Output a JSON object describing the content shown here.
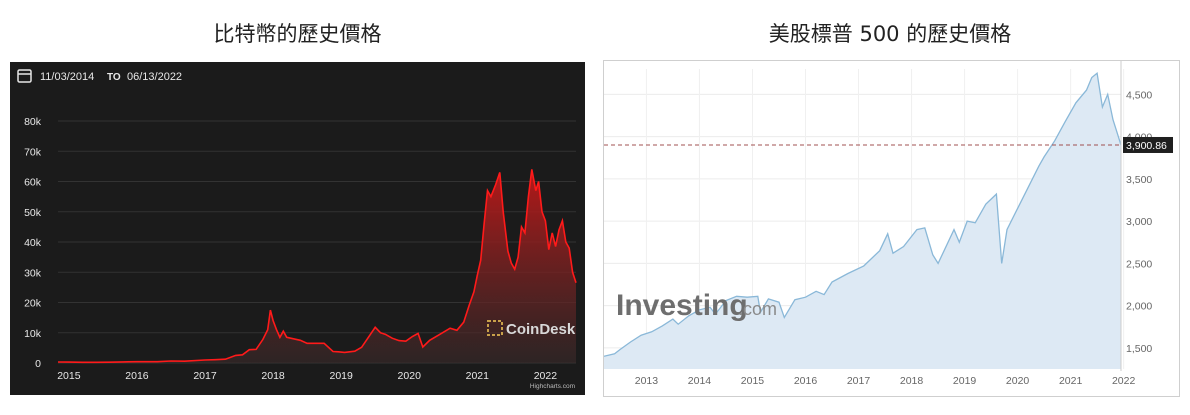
{
  "chart_data": [
    {
      "type": "area",
      "title": "比特幣的歷史價格",
      "date_range": {
        "from": "11/03/2014",
        "to_label": "TO",
        "to": "06/13/2022"
      },
      "x_ticks": [
        "2015",
        "2016",
        "2017",
        "2018",
        "2019",
        "2020",
        "2021",
        "2022"
      ],
      "y_ticks": [
        "0",
        "10k",
        "20k",
        "30k",
        "40k",
        "50k",
        "60k",
        "70k",
        "80k"
      ],
      "ylim": [
        0,
        80000
      ],
      "xlim": [
        2014.84,
        2022.45
      ],
      "watermark": "CoinDesk",
      "credit": "Highcharts.com",
      "colors": {
        "background": "#1b1b1b",
        "line": "#ff1a1a",
        "fill": "#c01818"
      },
      "series": [
        {
          "x": [
            2014.84,
            2015.0,
            2015.2,
            2015.4,
            2015.6,
            2015.8,
            2016.0,
            2016.3,
            2016.5,
            2016.7,
            2017.0,
            2017.15,
            2017.3,
            2017.45,
            2017.55,
            2017.65,
            2017.75,
            2017.85,
            2017.92,
            2017.96,
            2018.0,
            2018.05,
            2018.1,
            2018.15,
            2018.2,
            2018.3,
            2018.4,
            2018.5,
            2018.6,
            2018.75,
            2018.88,
            2018.96,
            2019.05,
            2019.2,
            2019.3,
            2019.4,
            2019.5,
            2019.58,
            2019.65,
            2019.75,
            2019.85,
            2019.95,
            2020.05,
            2020.13,
            2020.2,
            2020.3,
            2020.45,
            2020.6,
            2020.7,
            2020.8,
            2020.88,
            2020.95,
            2021.0,
            2021.05,
            2021.1,
            2021.15,
            2021.2,
            2021.27,
            2021.33,
            2021.38,
            2021.45,
            2021.5,
            2021.55,
            2021.6,
            2021.65,
            2021.7,
            2021.75,
            2021.8,
            2021.86,
            2021.9,
            2021.95,
            2022.0,
            2022.05,
            2022.1,
            2022.15,
            2022.2,
            2022.25,
            2022.3,
            2022.35,
            2022.4,
            2022.45
          ],
          "y": [
            330,
            300,
            240,
            230,
            250,
            380,
            430,
            420,
            650,
            610,
            990,
            1100,
            1250,
            2500,
            2700,
            4400,
            4500,
            7800,
            11000,
            17500,
            14000,
            11000,
            8500,
            10500,
            8500,
            8000,
            7500,
            6500,
            6500,
            6500,
            3800,
            3700,
            3500,
            3900,
            5200,
            8500,
            11800,
            10000,
            9500,
            8200,
            7400,
            7200,
            8800,
            9800,
            5300,
            7500,
            9500,
            11500,
            10800,
            13500,
            19000,
            23500,
            29000,
            34000,
            46000,
            57000,
            55000,
            59000,
            63000,
            50000,
            37000,
            33000,
            31000,
            35000,
            45000,
            43000,
            55000,
            64000,
            57000,
            60000,
            50000,
            47000,
            37500,
            43000,
            38500,
            44000,
            47000,
            40000,
            38000,
            30000,
            26500
          ]
        }
      ]
    },
    {
      "type": "area",
      "title": "美股標普 500 的歷史價格",
      "x_ticks": [
        "2013",
        "2014",
        "2015",
        "2016",
        "2017",
        "2018",
        "2019",
        "2020",
        "2021",
        "2022"
      ],
      "y_ticks": [
        "1,500",
        "2,000",
        "2,500",
        "3,000",
        "3,500",
        "4,000",
        "4,500"
      ],
      "ylim": [
        1250,
        4800
      ],
      "xlim": [
        2012.7,
        2022.45
      ],
      "current_value": "3,900.86",
      "watermark": {
        "main": "Investing",
        "suffix": ".com"
      },
      "colors": {
        "line": "#8ab8d8",
        "fill": "#dde9f4",
        "reference_line": "#a05050"
      },
      "series": [
        {
          "x": [
            2012.7,
            2012.9,
            2013.0,
            2013.2,
            2013.4,
            2013.6,
            2013.8,
            2014.0,
            2014.1,
            2014.3,
            2014.5,
            2014.7,
            2014.8,
            2015.0,
            2015.2,
            2015.4,
            2015.6,
            2015.65,
            2015.8,
            2016.0,
            2016.1,
            2016.3,
            2016.5,
            2016.7,
            2016.85,
            2017.0,
            2017.3,
            2017.6,
            2017.9,
            2018.05,
            2018.15,
            2018.35,
            2018.6,
            2018.75,
            2018.9,
            2019.0,
            2019.3,
            2019.4,
            2019.55,
            2019.7,
            2019.9,
            2020.1,
            2020.2,
            2020.3,
            2020.5,
            2020.7,
            2020.9,
            2021.0,
            2021.2,
            2021.4,
            2021.6,
            2021.8,
            2021.9,
            2022.0,
            2022.1,
            2022.2,
            2022.3,
            2022.35,
            2022.45
          ],
          "y": [
            1400,
            1430,
            1480,
            1570,
            1650,
            1690,
            1760,
            1840,
            1780,
            1880,
            1950,
            1980,
            1900,
            2060,
            2110,
            2100,
            2110,
            1920,
            2080,
            2040,
            1860,
            2070,
            2100,
            2170,
            2130,
            2280,
            2380,
            2470,
            2650,
            2850,
            2620,
            2700,
            2900,
            2920,
            2600,
            2500,
            2900,
            2750,
            3000,
            2980,
            3200,
            3320,
            2500,
            2900,
            3150,
            3400,
            3650,
            3760,
            3950,
            4180,
            4400,
            4550,
            4700,
            4750,
            4350,
            4500,
            4200,
            4100,
            3900
          ]
        }
      ]
    }
  ]
}
